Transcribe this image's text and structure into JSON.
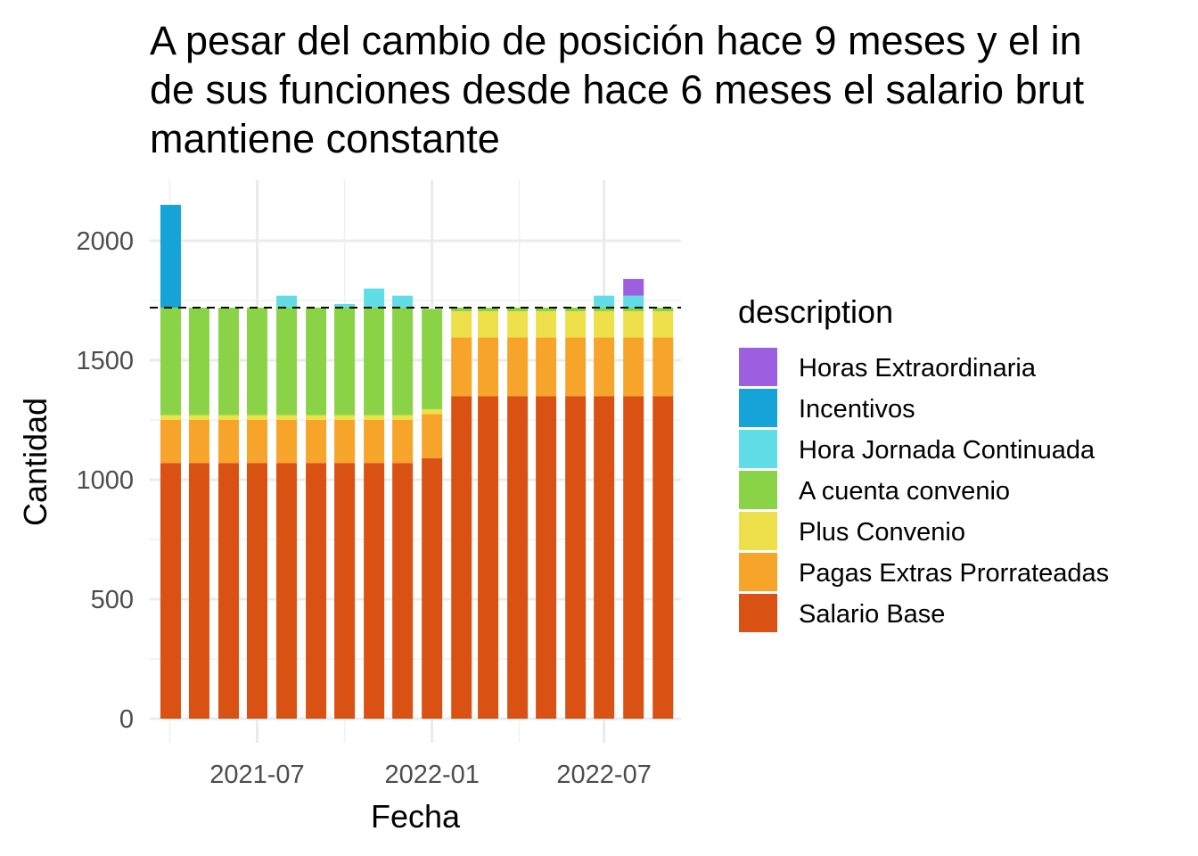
{
  "chart_data": {
    "type": "bar",
    "stacked": true,
    "title_lines": [
      "A pesar del cambio de posición hace 9 meses y el in",
      "de sus funciones desde hace 6 meses el salario brut",
      "mantiene constante"
    ],
    "xlabel": "Fecha",
    "ylabel": "Cantidad",
    "legend_title": "description",
    "legend_position": "right",
    "grid": true,
    "ylim": [
      0,
      2250
    ],
    "y_ticks": [
      0,
      500,
      1000,
      1500,
      2000
    ],
    "x_range": [
      "2021-03-10",
      "2022-09-20"
    ],
    "x_ticks": [
      {
        "date": "2021-07-01",
        "label": "2021-07"
      },
      {
        "date": "2022-01-01",
        "label": "2022-01"
      },
      {
        "date": "2022-07-01",
        "label": "2022-07"
      }
    ],
    "reference_line": {
      "y": 1720,
      "style": "dashed"
    },
    "categories": [
      "2021-04-01",
      "2021-05-01",
      "2021-06-01",
      "2021-07-01",
      "2021-08-01",
      "2021-09-01",
      "2021-10-01",
      "2021-11-01",
      "2021-12-01",
      "2022-01-01",
      "2022-02-01",
      "2022-03-01",
      "2022-04-01",
      "2022-05-01",
      "2022-06-01",
      "2022-07-01",
      "2022-08-01",
      "2022-09-01"
    ],
    "series": [
      {
        "name": "Salario Base",
        "color": "#D95213",
        "values": [
          1070,
          1070,
          1070,
          1070,
          1070,
          1070,
          1070,
          1070,
          1070,
          1090,
          1350,
          1350,
          1350,
          1350,
          1350,
          1350,
          1350,
          1350
        ]
      },
      {
        "name": "Pagas Extras Prorrateadas",
        "color": "#F7A42B",
        "values": [
          180,
          180,
          180,
          180,
          180,
          180,
          180,
          180,
          180,
          185,
          245,
          245,
          245,
          245,
          245,
          245,
          245,
          245
        ]
      },
      {
        "name": "Plus Convenio",
        "color": "#EDE04A",
        "values": [
          20,
          20,
          20,
          20,
          20,
          20,
          20,
          20,
          20,
          20,
          110,
          110,
          110,
          110,
          110,
          110,
          110,
          110
        ]
      },
      {
        "name": "A cuenta convenio",
        "color": "#8BD346",
        "values": [
          450,
          450,
          450,
          450,
          450,
          450,
          450,
          450,
          450,
          420,
          15,
          15,
          15,
          15,
          15,
          15,
          15,
          15
        ]
      },
      {
        "name": "Hora Jornada Continuada",
        "color": "#61DDE8",
        "values": [
          0,
          0,
          0,
          0,
          50,
          0,
          15,
          80,
          50,
          0,
          0,
          0,
          0,
          0,
          0,
          50,
          50,
          0
        ]
      },
      {
        "name": "Incentivos",
        "color": "#16A4D8",
        "values": [
          430,
          0,
          0,
          0,
          0,
          0,
          0,
          0,
          0,
          0,
          0,
          0,
          0,
          0,
          0,
          0,
          0,
          0
        ]
      },
      {
        "name": "Horas Extraordinaria",
        "color": "#9B5FE0",
        "values": [
          0,
          0,
          0,
          0,
          0,
          0,
          0,
          0,
          0,
          0,
          0,
          0,
          0,
          0,
          0,
          0,
          70,
          0
        ]
      }
    ],
    "legend_order": [
      "Horas Extraordinaria",
      "Incentivos",
      "Hora Jornada Continuada",
      "A cuenta convenio",
      "Plus Convenio",
      "Pagas Extras Prorrateadas",
      "Salario Base"
    ]
  }
}
